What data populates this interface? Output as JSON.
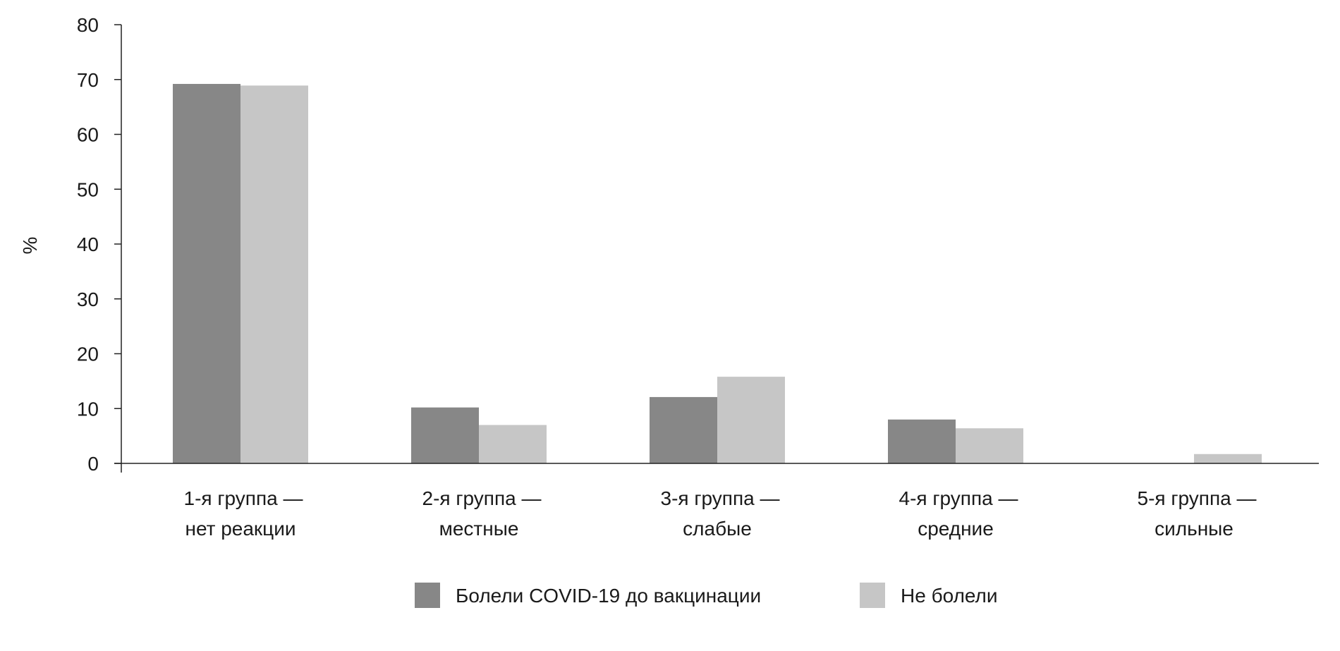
{
  "chart_data": {
    "type": "bar",
    "title": "",
    "xlabel": "",
    "ylabel": "%",
    "ylim": [
      0,
      80
    ],
    "yticks": [
      0,
      10,
      20,
      30,
      40,
      50,
      60,
      70,
      80
    ],
    "grid": false,
    "legend_position": "bottom-center",
    "categories": [
      [
        "1-я группа —",
        "нет реакции"
      ],
      [
        "2-я группа —",
        "местные"
      ],
      [
        "3-я группа —",
        "слабые"
      ],
      [
        "4-я группа —",
        "средние"
      ],
      [
        "5-я группа —",
        "сильные"
      ]
    ],
    "series": [
      {
        "name": "Болели COVID-19 до вакцинации",
        "color": "#878787",
        "values": [
          69.2,
          10.2,
          12.1,
          8.0,
          0
        ]
      },
      {
        "name": "Не болели",
        "color": "#c6c6c6",
        "values": [
          68.9,
          7.0,
          15.8,
          6.4,
          1.7
        ]
      }
    ]
  }
}
